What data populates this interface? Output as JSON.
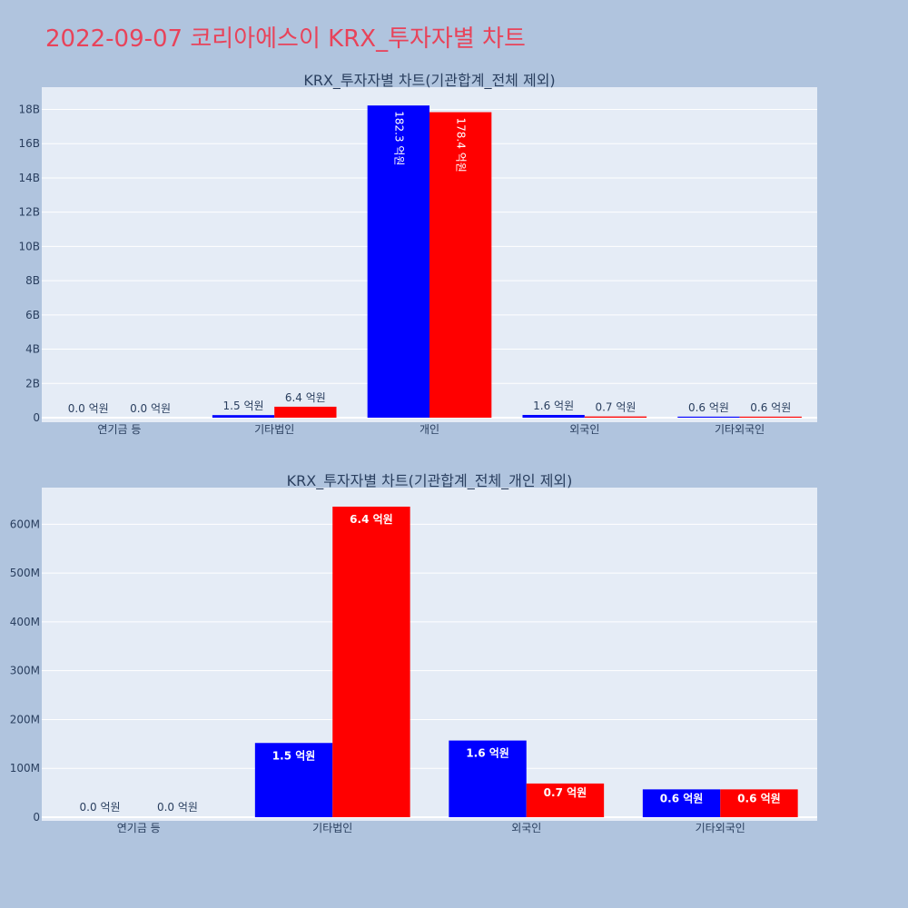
{
  "page_title": "2022-09-07 코리아에스이 KRX_투자자별 차트",
  "colors": {
    "buy": "#0000ff",
    "sell": "#ff0000",
    "plot_bg": "#e5ecf6",
    "page_bg": "#b0c4de",
    "title": "#e8435a"
  },
  "chart_data": [
    {
      "type": "bar",
      "title": "KRX_투자자별 차트(기관합계_전체 제외)",
      "categories": [
        "연기금 등",
        "기타법인",
        "개인",
        "외국인",
        "기타외국인"
      ],
      "series": [
        {
          "values": [
            0,
            150000000,
            18230000000,
            160000000,
            60000000
          ],
          "labels": [
            "0.0 억원",
            "1.5 억원",
            "182.3 억원",
            "1.6 억원",
            "0.6 억원"
          ]
        },
        {
          "values": [
            0,
            640000000,
            17840000000,
            70000000,
            60000000
          ],
          "labels": [
            "0.0 억원",
            "6.4 억원",
            "178.4 억원",
            "0.7 억원",
            "0.6 억원"
          ]
        }
      ],
      "yticks": [
        "0",
        "2B",
        "4B",
        "6B",
        "8B",
        "10B",
        "12B",
        "14B",
        "16B",
        "18B"
      ],
      "ylim": [
        0,
        19300000000
      ],
      "xlabel": "",
      "ylabel": "",
      "grid": true
    },
    {
      "type": "bar",
      "title": "KRX_투자자별 차트(기관합계_전체_개인 제외)",
      "categories": [
        "연기금 등",
        "기타법인",
        "외국인",
        "기타외국인"
      ],
      "series": [
        {
          "values": [
            0,
            152000000,
            157000000,
            57000000
          ],
          "labels": [
            "0.0 억원",
            "1.5 억원",
            "1.6 억원",
            "0.6 억원"
          ]
        },
        {
          "values": [
            0,
            636000000,
            69000000,
            57000000
          ],
          "labels": [
            "0.0 억원",
            "6.4 억원",
            "0.7 억원",
            "0.6 억원"
          ]
        }
      ],
      "yticks": [
        "0",
        "100M",
        "200M",
        "300M",
        "400M",
        "500M",
        "600M"
      ],
      "ylim": [
        0,
        675000000
      ],
      "xlabel": "",
      "ylabel": "",
      "grid": true
    }
  ]
}
